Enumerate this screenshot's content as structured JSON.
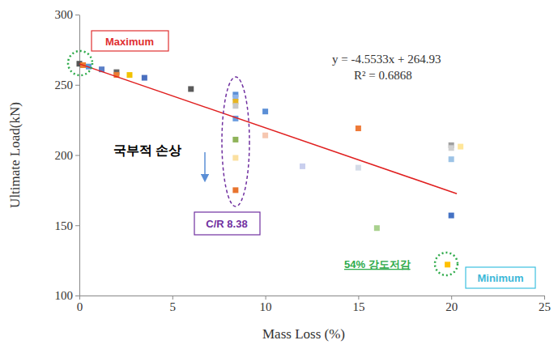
{
  "chart_data": {
    "type": "scatter",
    "x_label": "Mass Loss (%)",
    "y_label": "Ultimate Load(kN)",
    "xlim": [
      0,
      25
    ],
    "xticks": [
      0,
      5,
      10,
      15,
      20,
      25
    ],
    "ylim": [
      100,
      300
    ],
    "yticks": [
      100,
      150,
      200,
      250,
      300
    ],
    "grid": false,
    "series": [
      {
        "type": "scatter",
        "marker": "square",
        "x": [
          0.0,
          0.2,
          0.5,
          1.2,
          2.0,
          2.0,
          2.7,
          3.5,
          6.0,
          8.4,
          8.4,
          8.4,
          8.4,
          8.4,
          8.4,
          8.4,
          8.4,
          10.0,
          10.0,
          12.0,
          15.0,
          15.0,
          16.0,
          20.0,
          20.0,
          20.0,
          20.5,
          20.0,
          19.8
        ],
        "values": [
          265,
          264,
          263,
          261,
          259,
          257,
          257,
          255,
          247,
          243,
          241,
          238,
          235,
          226,
          211,
          198,
          175,
          231,
          214,
          192,
          219,
          191,
          148,
          207,
          205,
          197,
          206,
          157,
          122
        ],
        "colors": [
          "#555555",
          "#ed7d31",
          "#5b9bd5",
          "#5b7fc7",
          "#666666",
          "#ed7d31",
          "#f2c200",
          "#4a6fbf",
          "#5a5a5a",
          "#5b8fd6",
          "#8fb4e8",
          "#e6b422",
          "#c8c8c8",
          "#6b9de0",
          "#8fb35a",
          "#fbe0a0",
          "#e8742e",
          "#5b8fd6",
          "#f6c7b0",
          "#c9cfee",
          "#ee7a38",
          "#d5dce8",
          "#a9d18e",
          "#a0a0a0",
          "#d0d0d0",
          "#9dc3e6",
          "#ffe699",
          "#4472c4",
          "#ffc000"
        ]
      },
      {
        "type": "line",
        "line_style": "solid",
        "color": "#e02020",
        "x": [
          0,
          20.3
        ],
        "values": [
          264.93,
          172.5
        ]
      }
    ],
    "annotations": [
      "Maximum",
      "Minimum",
      "국부적 손상",
      "C/R 8.38",
      "54% 강도저감",
      "y = -4.5533x + 264.93",
      "R² = 0.6868"
    ]
  }
}
